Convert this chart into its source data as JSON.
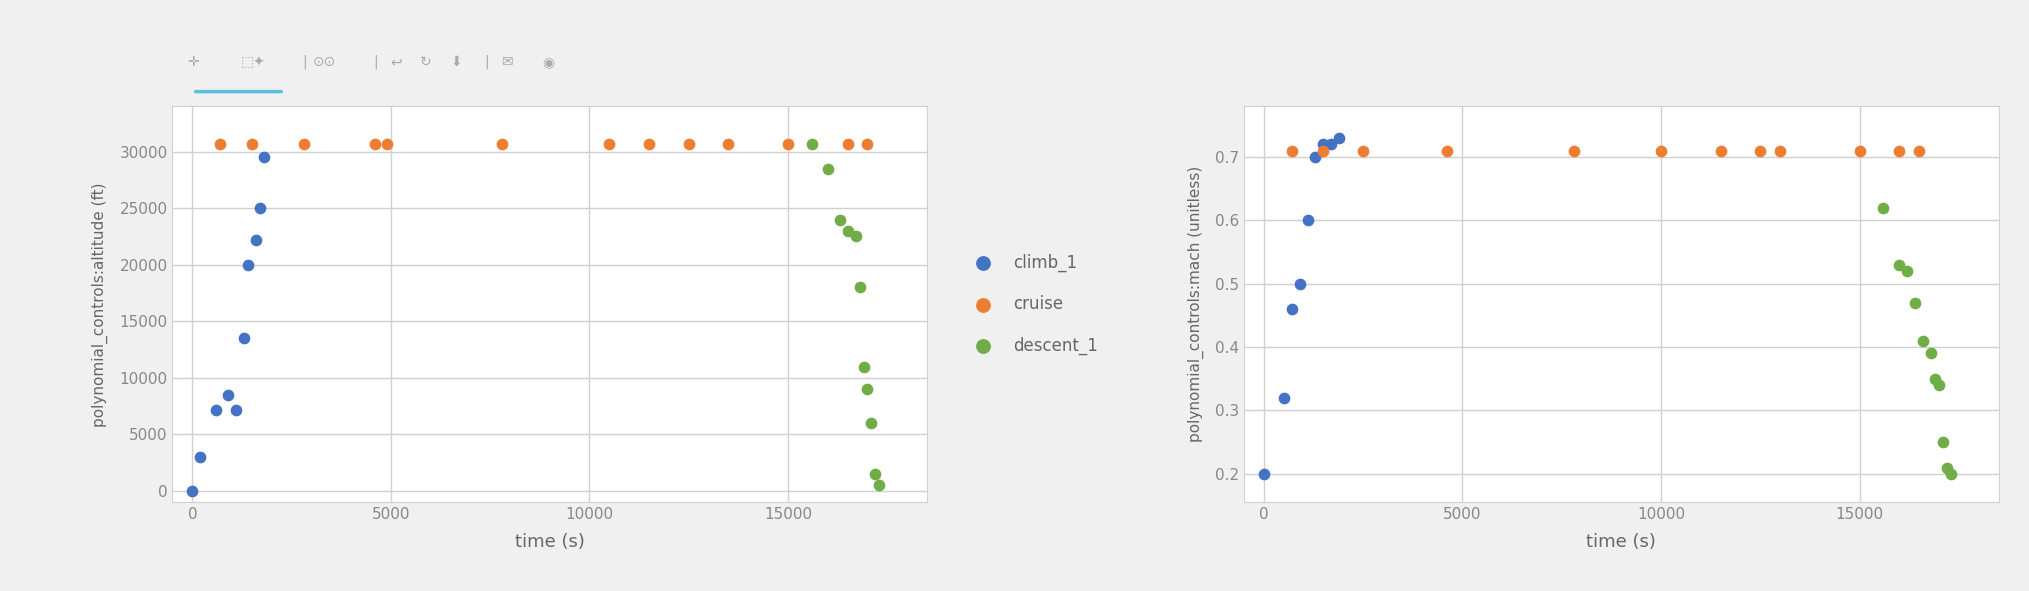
{
  "alt_climb_x": [
    0,
    200,
    600,
    900,
    1100,
    1300,
    1400,
    1600,
    1700,
    1800
  ],
  "alt_climb_y": [
    0,
    3000,
    7200,
    8500,
    7200,
    13500,
    20000,
    22200,
    25000,
    29500
  ],
  "alt_cruise_x": [
    700,
    1500,
    2800,
    4600,
    4900,
    7800,
    10500,
    11500,
    12500,
    13500,
    15000,
    16500,
    17000
  ],
  "alt_cruise_y": [
    30700,
    30700,
    30700,
    30700,
    30700,
    30700,
    30700,
    30700,
    30700,
    30700,
    30700,
    30700,
    30700
  ],
  "alt_descent_x": [
    15600,
    16000,
    16300,
    16500,
    16700,
    16800,
    16900,
    17000,
    17100,
    17200,
    17300
  ],
  "alt_descent_y": [
    30700,
    28500,
    24000,
    23000,
    22500,
    18000,
    11000,
    9000,
    6000,
    1500,
    500
  ],
  "mach_climb_x": [
    0,
    500,
    700,
    900,
    1100,
    1300,
    1500,
    1700,
    1900
  ],
  "mach_climb_y": [
    0.2,
    0.32,
    0.46,
    0.5,
    0.6,
    0.7,
    0.72,
    0.72,
    0.73
  ],
  "mach_cruise_x": [
    700,
    1500,
    2500,
    4600,
    7800,
    10000,
    11500,
    12500,
    13000,
    15000,
    16000,
    16500
  ],
  "mach_cruise_y": [
    0.71,
    0.71,
    0.71,
    0.71,
    0.71,
    0.71,
    0.71,
    0.71,
    0.71,
    0.71,
    0.71,
    0.71
  ],
  "mach_descent_x": [
    15600,
    16000,
    16200,
    16400,
    16600,
    16800,
    16900,
    17000,
    17100,
    17200,
    17300
  ],
  "mach_descent_y": [
    0.62,
    0.53,
    0.52,
    0.47,
    0.41,
    0.39,
    0.35,
    0.34,
    0.25,
    0.21,
    0.2
  ],
  "color_climb": "#4472c4",
  "color_cruise": "#ed7d31",
  "color_descent": "#70ad47",
  "background_color": "#f0f0f0",
  "plot_bg_color": "#ffffff",
  "grid_color": "#d0d0d0",
  "alt_ylabel": "polynomial_controls:altitude (ft)",
  "mach_ylabel": "polynomial_controls:mach (unitless)",
  "xlabel": "time (s)",
  "legend_labels": [
    "climb_1",
    "cruise",
    "descent_1"
  ],
  "alt_yticks": [
    0,
    5000,
    10000,
    15000,
    20000,
    25000,
    30000
  ],
  "mach_yticks": [
    0.2,
    0.3,
    0.4,
    0.5,
    0.6,
    0.7
  ],
  "xticks": [
    0,
    5000,
    10000,
    15000
  ],
  "alt_xlim": [
    -500,
    18500
  ],
  "alt_ylim": [
    -1000,
    34000
  ],
  "mach_xlim": [
    -500,
    18500
  ],
  "mach_ylim": [
    0.155,
    0.78
  ],
  "marker_size": 55,
  "toolbar_color": "#aaaaaa",
  "toolbar_active_color": "#5bc0de"
}
